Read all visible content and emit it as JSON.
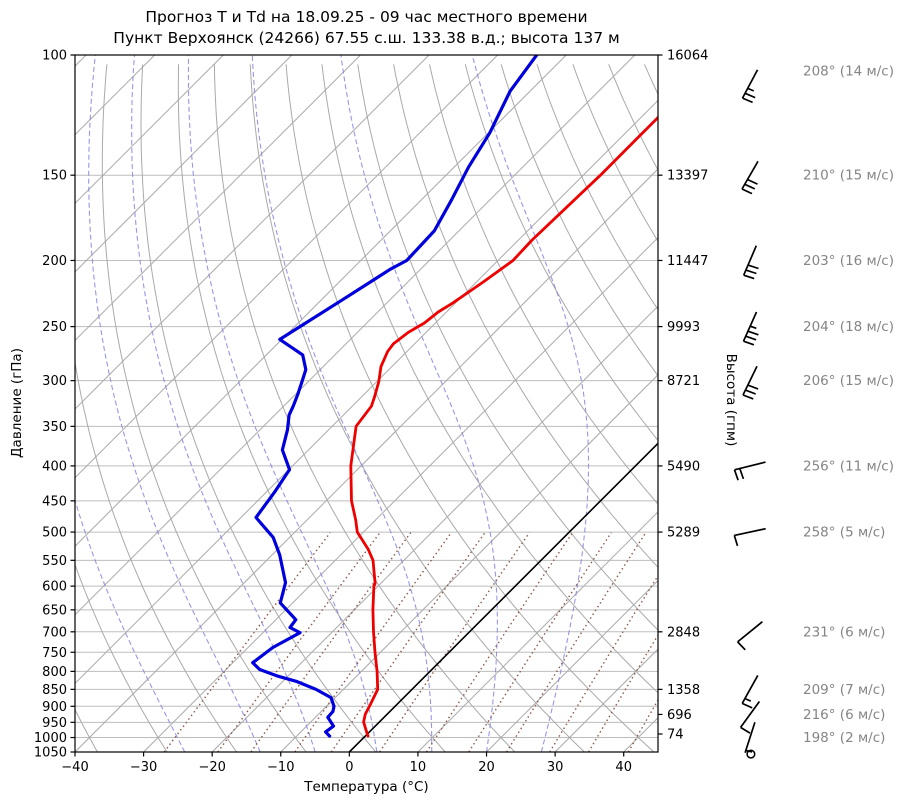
{
  "title": {
    "line1": "Прогноз Т и Td на 18.09.25 - 09 час местного времени",
    "line2": "Пункт Верхоянск (24266) 67.55 с.ш. 133.38 в.д.; высота 137 м"
  },
  "axes": {
    "pressure_label": "Давление (гПа)",
    "height_label": "Высота (гпм)",
    "temperature_label": "Температура (°C)",
    "pressure_ticks": [
      100,
      150,
      200,
      250,
      300,
      350,
      400,
      450,
      500,
      550,
      600,
      650,
      700,
      750,
      800,
      850,
      900,
      950,
      1000,
      1050
    ],
    "temperature_tick_labels": [
      "−40",
      "−30",
      "−20",
      "−10",
      "0",
      "10",
      "20",
      "30",
      "40"
    ],
    "pressure_range": [
      100,
      1050
    ],
    "temperature_range": [
      -40,
      45
    ]
  },
  "chart_data": {
    "type": "line",
    "subtype": "skew-t-log-p",
    "title": "Прогноз Т и Td на 18.09.25 - 09 час местного времени",
    "xlabel": "Температура (°C)",
    "ylabel_left": "Давление (гПа)",
    "ylabel_right": "Высота (гпм)",
    "xlim": [
      -40,
      45
    ],
    "ylim": [
      1050,
      100
    ],
    "skew_deg": 45,
    "series": [
      {
        "name": "temperature",
        "color": "#ee0000",
        "units": "°C",
        "points_p_t": [
          [
            118,
            -47.7
          ],
          [
            122,
            -47.5
          ],
          [
            150,
            -47.5
          ],
          [
            187,
            -48.0
          ],
          [
            200,
            -47.8
          ],
          [
            215,
            -49.0
          ],
          [
            231,
            -50.4
          ],
          [
            238,
            -51.2
          ],
          [
            247,
            -51.6
          ],
          [
            255,
            -52.6
          ],
          [
            265,
            -53.1
          ],
          [
            272,
            -52.8
          ],
          [
            286,
            -51.6
          ],
          [
            301,
            -49.7
          ],
          [
            317,
            -48.1
          ],
          [
            327,
            -47.2
          ],
          [
            350,
            -46.5
          ],
          [
            400,
            -41.5
          ],
          [
            450,
            -36.3
          ],
          [
            480,
            -32.9
          ],
          [
            500,
            -30.9
          ],
          [
            530,
            -26.8
          ],
          [
            550,
            -24.5
          ],
          [
            575,
            -22.4
          ],
          [
            595,
            -20.8
          ],
          [
            600,
            -20.6
          ],
          [
            650,
            -17.3
          ],
          [
            700,
            -14.0
          ],
          [
            750,
            -10.8
          ],
          [
            800,
            -7.7
          ],
          [
            850,
            -5.0
          ],
          [
            893,
            -3.9
          ],
          [
            924,
            -3.2
          ],
          [
            949,
            -2.3
          ],
          [
            978,
            -0.6
          ],
          [
            995,
            0.4
          ]
        ]
      },
      {
        "name": "dewpoint",
        "color": "#0000dd",
        "units": "°C",
        "points_p_t": [
          [
            100,
            -74.3
          ],
          [
            113,
            -72.9
          ],
          [
            130,
            -69.8
          ],
          [
            146,
            -67.9
          ],
          [
            163,
            -65.6
          ],
          [
            181,
            -63.6
          ],
          [
            200,
            -63.3
          ],
          [
            206,
            -64.4
          ],
          [
            228,
            -66.9
          ],
          [
            261,
            -70.3
          ],
          [
            275,
            -64.7
          ],
          [
            289,
            -62.1
          ],
          [
            301,
            -60.9
          ],
          [
            315,
            -59.6
          ],
          [
            327,
            -58.6
          ],
          [
            337,
            -57.9
          ],
          [
            354,
            -56.0
          ],
          [
            379,
            -53.8
          ],
          [
            405,
            -49.9
          ],
          [
            437,
            -48.8
          ],
          [
            476,
            -47.8
          ],
          [
            509,
            -42.4
          ],
          [
            540,
            -38.9
          ],
          [
            593,
            -34.0
          ],
          [
            635,
            -31.8
          ],
          [
            672,
            -27.1
          ],
          [
            690,
            -26.8
          ],
          [
            702,
            -24.6
          ],
          [
            738,
            -26.4
          ],
          [
            777,
            -27.1
          ],
          [
            795,
            -25.1
          ],
          [
            812,
            -21.7
          ],
          [
            828,
            -17.9
          ],
          [
            850,
            -14.0
          ],
          [
            874,
            -10.6
          ],
          [
            900,
            -8.9
          ],
          [
            916,
            -8.3
          ],
          [
            934,
            -8.2
          ],
          [
            962,
            -6.1
          ],
          [
            981,
            -6.4
          ],
          [
            995,
            -5.2
          ]
        ]
      }
    ],
    "height_labels": [
      {
        "pressure": 100,
        "label": "16064"
      },
      {
        "pressure": 150,
        "label": "13397"
      },
      {
        "pressure": 200,
        "label": "11447"
      },
      {
        "pressure": 250,
        "label": "9993"
      },
      {
        "pressure": 300,
        "label": "8721"
      },
      {
        "pressure": 400,
        "label": "5490"
      },
      {
        "pressure": 500,
        "label": "5289"
      },
      {
        "pressure": 700,
        "label": "2848"
      },
      {
        "pressure": 850,
        "label": "1358"
      },
      {
        "pressure": 925,
        "label": "696"
      },
      {
        "pressure": 1000,
        "label": "74"
      }
    ],
    "winds": [
      {
        "pressure": 100,
        "direction": 208,
        "speed": 14,
        "label": "208° (14 м/с)"
      },
      {
        "pressure": 150,
        "direction": 210,
        "speed": 15,
        "label": "210° (15 м/с)"
      },
      {
        "pressure": 200,
        "direction": 203,
        "speed": 16,
        "label": "203° (16 м/с)"
      },
      {
        "pressure": 250,
        "direction": 204,
        "speed": 18,
        "label": "204° (18 м/с)"
      },
      {
        "pressure": 300,
        "direction": 206,
        "speed": 15,
        "label": "206° (15 м/с)"
      },
      {
        "pressure": 400,
        "direction": 256,
        "speed": 11,
        "label": "256° (11 м/с)"
      },
      {
        "pressure": 500,
        "direction": 258,
        "speed": 5,
        "label": "258° (5 м/с)"
      },
      {
        "pressure": 700,
        "direction": 231,
        "speed": 6,
        "label": "231° (6 м/с)"
      },
      {
        "pressure": 850,
        "direction": 209,
        "speed": 7,
        "label": "209° (7 м/с)"
      },
      {
        "pressure": 925,
        "direction": 216,
        "speed": 6,
        "label": "216° (6 м/с)"
      },
      {
        "pressure": 1000,
        "direction": 198,
        "speed": 2,
        "label": "198° (2 м/с)"
      }
    ],
    "grid": {
      "isotherms_c": [
        -140,
        -130,
        -120,
        -110,
        -100,
        -90,
        -80,
        -70,
        -60,
        -50,
        -40,
        -30,
        -20,
        -10,
        0,
        10,
        20,
        30,
        40
      ],
      "zero_isotherm_c": 0,
      "dry_adiabats_theta_c": [
        -40,
        -30,
        -20,
        -10,
        0,
        10,
        20,
        30,
        40,
        50,
        60,
        70,
        80,
        90,
        100,
        110,
        120,
        130,
        140,
        150,
        160,
        170,
        180,
        190,
        200
      ],
      "moist_adiabats_t0_c": [
        -24,
        -13,
        -5,
        4,
        12,
        20,
        28
      ],
      "mixing_ratio_g_kg": [
        0.4,
        0.8,
        1.2,
        2,
        3,
        5,
        8,
        12,
        17,
        25,
        35,
        49
      ],
      "mixing_ratio_top_hpa": 500,
      "pressure_gridline_color": "#bdbdbd",
      "isotherm_color": "#a9a9a9",
      "dry_adiabat_color": "#a9a9a9",
      "moist_adiabat_color": "#8585e0",
      "mixing_ratio_color": "#8c5b4a",
      "zero_isotherm_color": "#000000",
      "legend": false
    },
    "colors": {
      "temperature": "#ee0000",
      "dewpoint": "#0000dd",
      "wind_label_text": "#858585",
      "axis_text": "#000000"
    }
  }
}
